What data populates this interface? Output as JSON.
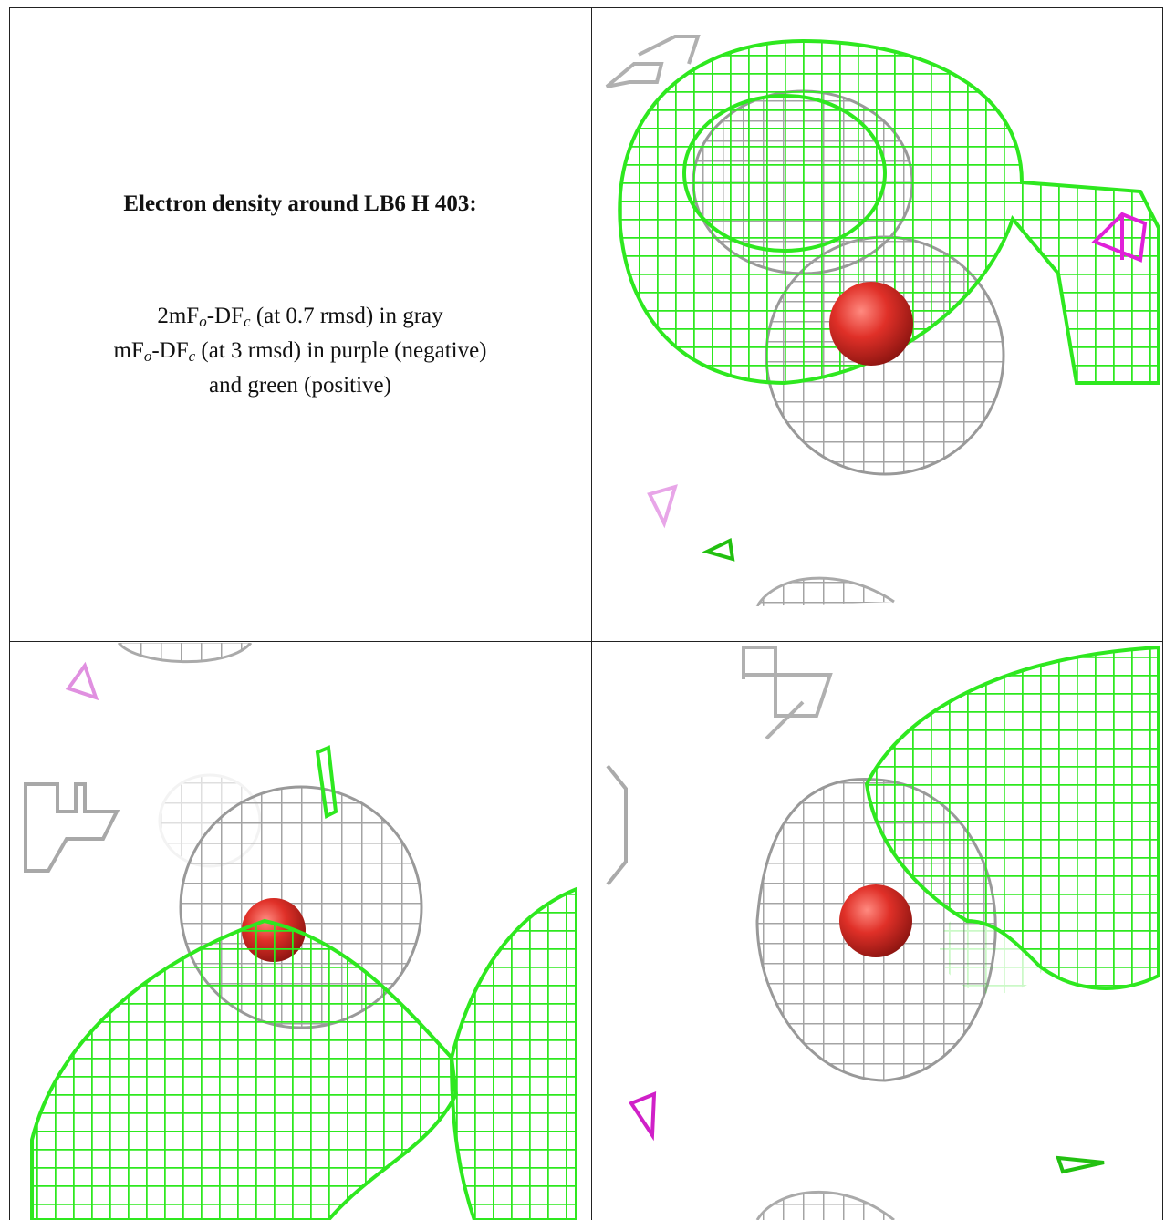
{
  "caption": {
    "title": "Electron density around LB6 H 403:",
    "lines": [
      [
        "2mF",
        "o",
        "-DF",
        "c",
        " (at 0.7 rmsd) in gray"
      ],
      [
        "mF",
        "o",
        "-DF",
        "c",
        " (at 3 rmsd) in purple (negative)"
      ],
      [
        "and green (positive)"
      ]
    ]
  }
}
